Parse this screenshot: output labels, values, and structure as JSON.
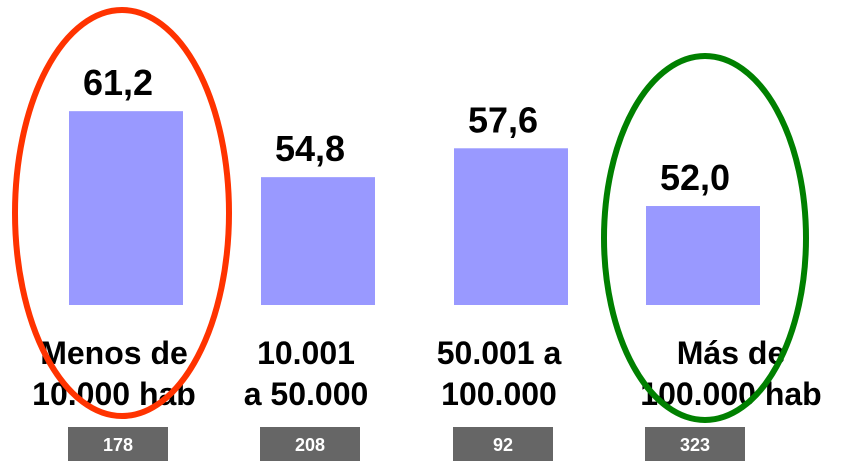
{
  "chart_data": {
    "type": "bar",
    "categories": [
      [
        "Menos de",
        "10.000 hab"
      ],
      [
        "10.001",
        "a 50.000"
      ],
      [
        "50.001 a",
        "100.000"
      ],
      [
        "Más de",
        "100.000 hab"
      ]
    ],
    "values": [
      61.2,
      54.8,
      57.6,
      52.0
    ],
    "value_labels": [
      "61,2",
      "54,8",
      "57,6",
      "52,0"
    ],
    "counts": [
      "178",
      "208",
      "92",
      "323"
    ],
    "title": "",
    "xlabel": "",
    "ylabel": "",
    "grid": false,
    "legend": "none",
    "bar_color": "#9999ff",
    "count_box_color": "#666666",
    "highlights": [
      {
        "category_index": 0,
        "shape": "ellipse",
        "color": "#ff3300"
      },
      {
        "category_index": 3,
        "shape": "ellipse",
        "color": "#008000"
      }
    ]
  }
}
